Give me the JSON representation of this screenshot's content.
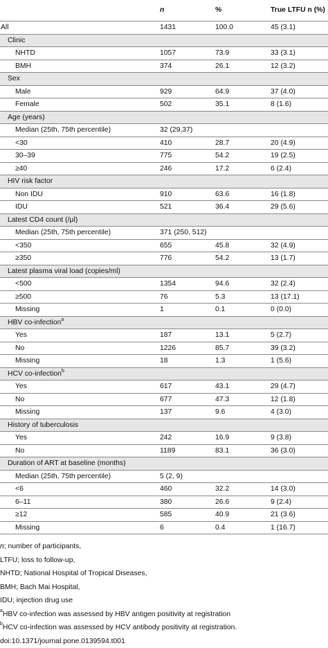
{
  "columns": {
    "label": "",
    "n": "n",
    "pct": "%",
    "ltfu": "True LTFU n (%)"
  },
  "rows": [
    {
      "label": "All",
      "level": 0,
      "n": "1431",
      "pct": "100.0",
      "ltfu": "45 (3.1)"
    },
    {
      "label": "Clinic",
      "level": 1,
      "n": "",
      "pct": "",
      "ltfu": ""
    },
    {
      "label": "NHTD",
      "level": 2,
      "n": "1057",
      "pct": "73.9",
      "ltfu": "33 (3.1)"
    },
    {
      "label": "BMH",
      "level": 2,
      "n": "374",
      "pct": "26.1",
      "ltfu": "12 (3.2)"
    },
    {
      "label": "Sex",
      "level": 1,
      "n": "",
      "pct": "",
      "ltfu": ""
    },
    {
      "label": "Male",
      "level": 2,
      "n": "929",
      "pct": "64.9",
      "ltfu": "37 (4.0)"
    },
    {
      "label": "Female",
      "level": 2,
      "n": "502",
      "pct": "35.1",
      "ltfu": "8 (1.6)"
    },
    {
      "label": "Age (years)",
      "level": 1,
      "n": "",
      "pct": "",
      "ltfu": ""
    },
    {
      "label": "Median (25th, 75th percentile)",
      "level": 2,
      "n": "32 (29,37)",
      "pct": "",
      "ltfu": ""
    },
    {
      "label": "<30",
      "level": 2,
      "n": "410",
      "pct": "28.7",
      "ltfu": "20 (4.9)"
    },
    {
      "label": "30–39",
      "level": 2,
      "n": "775",
      "pct": "54.2",
      "ltfu": "19 (2.5)"
    },
    {
      "label": "≥40",
      "level": 2,
      "n": "246",
      "pct": "17.2",
      "ltfu": "6 (2.4)"
    },
    {
      "label": "HIV risk factor",
      "level": 1,
      "n": "",
      "pct": "",
      "ltfu": ""
    },
    {
      "label": "Non IDU",
      "level": 2,
      "n": "910",
      "pct": "63.6",
      "ltfu": "16 (1.8)"
    },
    {
      "label": "IDU",
      "level": 2,
      "n": "521",
      "pct": "36.4",
      "ltfu": "29 (5.6)"
    },
    {
      "label": "Latest CD4 count (/µl)",
      "level": 1,
      "n": "",
      "pct": "",
      "ltfu": ""
    },
    {
      "label": "Median (25th, 75th percentile)",
      "level": 2,
      "n": "371 (250, 512)",
      "pct": "",
      "ltfu": ""
    },
    {
      "label": "<350",
      "level": 2,
      "n": "655",
      "pct": "45.8",
      "ltfu": "32 (4.9)"
    },
    {
      "label": "≥350",
      "level": 2,
      "n": "776",
      "pct": "54.2",
      "ltfu": "13 (1.7)"
    },
    {
      "label": "Latest plasma viral load (copies/ml)",
      "level": 1,
      "n": "",
      "pct": "",
      "ltfu": ""
    },
    {
      "label": "<500",
      "level": 2,
      "n": "1354",
      "pct": "94.6",
      "ltfu": "32 (2.4)"
    },
    {
      "label": "≥500",
      "level": 2,
      "n": "76",
      "pct": "5.3",
      "ltfu": "13 (17.1)"
    },
    {
      "label": "Missing",
      "level": 2,
      "n": "1",
      "pct": "0.1",
      "ltfu": "0 (0.0)"
    },
    {
      "label": "HBV co-infection",
      "sup": "a",
      "level": 1,
      "n": "",
      "pct": "",
      "ltfu": ""
    },
    {
      "label": "Yes",
      "level": 2,
      "n": "187",
      "pct": "13.1",
      "ltfu": "5 (2.7)"
    },
    {
      "label": "No",
      "level": 2,
      "n": "1226",
      "pct": "85.7",
      "ltfu": "39 (3.2)"
    },
    {
      "label": "Missing",
      "level": 2,
      "n": "18",
      "pct": "1.3",
      "ltfu": "1 (5.6)"
    },
    {
      "label": "HCV co-infection",
      "sup": "b",
      "level": 1,
      "n": "",
      "pct": "",
      "ltfu": ""
    },
    {
      "label": "Yes",
      "level": 2,
      "n": "617",
      "pct": "43.1",
      "ltfu": "29 (4.7)"
    },
    {
      "label": "No",
      "level": 2,
      "n": "677",
      "pct": "47.3",
      "ltfu": "12 (1.8)"
    },
    {
      "label": "Missing",
      "level": 2,
      "n": "137",
      "pct": "9.6",
      "ltfu": "4 (3.0)"
    },
    {
      "label": "History of tuberculosis",
      "level": 1,
      "n": "",
      "pct": "",
      "ltfu": ""
    },
    {
      "label": "Yes",
      "level": 2,
      "n": "242",
      "pct": "16.9",
      "ltfu": "9 (3.8)"
    },
    {
      "label": "No",
      "level": 2,
      "n": "1189",
      "pct": "83.1",
      "ltfu": "36 (3.0)"
    },
    {
      "label": "Duration of ART at baseline (months)",
      "level": 1,
      "n": "",
      "pct": "",
      "ltfu": ""
    },
    {
      "label": "Median (25th, 75th percentile)",
      "level": 2,
      "n": "5 (2, 9)",
      "pct": "",
      "ltfu": ""
    },
    {
      "label": "<6",
      "level": 2,
      "n": "460",
      "pct": "32.2",
      "ltfu": "14 (3.0)"
    },
    {
      "label": "6–11",
      "level": 2,
      "n": "380",
      "pct": "26.6",
      "ltfu": "9 (2.4)"
    },
    {
      "label": "≥12",
      "level": 2,
      "n": "585",
      "pct": "40.9",
      "ltfu": "21 (3.6)"
    },
    {
      "label": "Missing",
      "level": 2,
      "n": "6",
      "pct": "0.4",
      "ltfu": "1 (16.7)"
    }
  ],
  "notes": [
    {
      "lead": "n",
      "lead_italic": true,
      "text": "; number of participants,"
    },
    {
      "lead": "",
      "text": "LTFU; loss to follow-up,"
    },
    {
      "lead": "",
      "text": "NHTD; National Hospital of Tropical Diseases,"
    },
    {
      "lead": "",
      "text": "BMH; Bach Mai Hospital,"
    },
    {
      "lead": "",
      "text": "IDU; injection drug use"
    },
    {
      "sup": "a",
      "text": "HBV co-infection was assessed by HBV antigen positivity at registration"
    },
    {
      "sup": "b",
      "text": "HCV co-infection was assessed by HCV antibody positivity at registration."
    },
    {
      "lead": "",
      "text": "doi:10.1371/journal.pone.0139594.t001"
    }
  ]
}
